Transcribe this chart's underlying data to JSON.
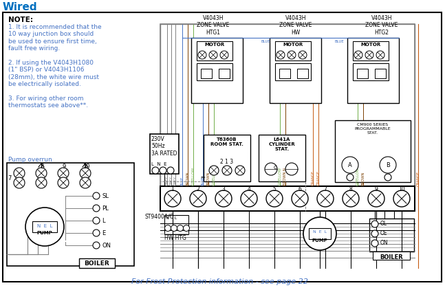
{
  "title": "Wired",
  "title_color": "#0070C0",
  "bg_color": "#FFFFFF",
  "note_text": "NOTE:",
  "note_lines": [
    "1. It is recommended that the",
    "10 way junction box should",
    "be used to ensure first time,",
    "fault free wiring.",
    " ",
    "2. If using the V4043H1080",
    "(1\" BSP) or V4043H1106",
    "(28mm), the white wire must",
    "be electrically isolated.",
    " ",
    "3. For wiring other room",
    "thermostats see above**."
  ],
  "pump_overrun_label": "Pump overrun",
  "footer_text": "For Frost Protection information - see page 22",
  "footer_color": "#4472C4",
  "wire_colors": {
    "grey": "#808080",
    "blue": "#4472C4",
    "brown": "#7B3F00",
    "orange": "#C55A11",
    "gyellow": "#70AD47",
    "black": "#000000",
    "dkgrey": "#404040"
  },
  "power_label": "230V\n50Hz\n3A RATED",
  "st9400_label": "ST9400A/C",
  "hw_htg_label": "HW HTG",
  "boiler_label": "BOILER",
  "t6360b_label": "T6360B\nROOM STAT.",
  "t6360b_nums": "2 1 3",
  "l641a_label": "L641A\nCYLINDER\nSTAT.",
  "cm900_label": "CM900 SERIES\nPROGRAMMABLE\nSTAT.",
  "motor_label": "MOTOR",
  "zone_labels": [
    "V4043H\nZONE VALVE\nHTG1",
    "V4043H\nZONE VALVE\nHW",
    "V4043H\nZONE VALVE\nHTG2"
  ]
}
